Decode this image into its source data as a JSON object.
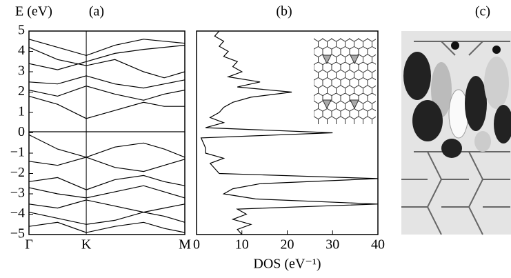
{
  "chart_data": [
    {
      "type": "line",
      "label": "(a)",
      "ylabel": "E (eV)",
      "color": "#000000",
      "x": [
        0,
        0.5,
        1,
        1.5,
        2,
        2.36,
        2.72
      ],
      "xlim": [
        0,
        2.72
      ],
      "xticks": [
        {
          "value": 0,
          "label": "Γ"
        },
        {
          "value": 1,
          "label": "K"
        },
        {
          "value": 2.72,
          "label": "M"
        }
      ],
      "ylim": [
        -5,
        5
      ],
      "yticks": [
        {
          "value": -5,
          "label": "−5"
        },
        {
          "value": -4,
          "label": "−4"
        },
        {
          "value": -3,
          "label": "−3"
        },
        {
          "value": -2,
          "label": "−2"
        },
        {
          "value": -1,
          "label": "−1"
        },
        0,
        1,
        2,
        3,
        4,
        5
      ],
      "series": [
        {
          "values": [
            4.6,
            4.2,
            3.8,
            4.3,
            4.6,
            4.5,
            4.4
          ]
        },
        {
          "values": [
            4.2,
            3.6,
            3.3,
            3.6,
            3.0,
            2.7,
            3.0
          ]
        },
        {
          "values": [
            3.4,
            3.1,
            3.5,
            3.9,
            4.1,
            4.2,
            4.3
          ]
        },
        {
          "values": [
            2.5,
            2.4,
            2.8,
            2.4,
            2.2,
            2.4,
            2.6
          ]
        },
        {
          "values": [
            2.1,
            1.8,
            2.3,
            1.9,
            1.6,
            1.9,
            2.1
          ]
        },
        {
          "values": [
            1.8,
            1.4,
            0.7,
            1.1,
            1.5,
            1.3,
            1.3
          ]
        },
        {
          "values": [
            0.05,
            0.05,
            0.05,
            0.05,
            0.05,
            0.05,
            0.05
          ]
        },
        {
          "values": [
            -0.1,
            -0.8,
            -1.2,
            -0.7,
            -0.5,
            -0.8,
            -1.2
          ]
        },
        {
          "values": [
            -1.4,
            -1.6,
            -1.2,
            -1.7,
            -1.9,
            -1.6,
            -1.3
          ]
        },
        {
          "values": [
            -2.4,
            -2.2,
            -2.8,
            -2.3,
            -2.1,
            -2.4,
            -2.6
          ]
        },
        {
          "values": [
            -2.7,
            -3.0,
            -3.2,
            -2.9,
            -2.6,
            -2.9,
            -3.2
          ]
        },
        {
          "values": [
            -3.5,
            -3.7,
            -3.3,
            -3.6,
            -3.9,
            -3.7,
            -3.5
          ]
        },
        {
          "values": [
            -3.9,
            -4.2,
            -4.5,
            -4.3,
            -3.9,
            -4.1,
            -4.4
          ]
        },
        {
          "values": [
            -4.6,
            -4.4,
            -4.9,
            -4.6,
            -4.4,
            -4.7,
            -4.9
          ]
        }
      ]
    },
    {
      "type": "line",
      "orientation": "horizontal",
      "label": "(b)",
      "xlabel": "DOS (eV⁻¹)",
      "color": "#000000",
      "y": [
        -5,
        -4.75,
        -4.5,
        -4.25,
        -4,
        -3.75,
        -3.5,
        -3.25,
        -3,
        -2.75,
        -2.5,
        -2.25,
        -2,
        -1.75,
        -1.5,
        -1.25,
        -1,
        -0.75,
        -0.5,
        -0.25,
        0,
        0.25,
        0.5,
        0.75,
        1,
        1.25,
        1.5,
        1.75,
        2,
        2.25,
        2.5,
        2.75,
        3,
        3.25,
        3.5,
        3.75,
        4,
        4.25,
        4.5,
        4.75,
        5
      ],
      "xlim": [
        0,
        40
      ],
      "xticks": [
        0,
        10,
        20,
        30,
        40
      ],
      "ylim": [
        -5,
        5
      ],
      "series": [
        {
          "values": [
            10,
            9,
            12,
            8,
            11,
            9,
            40,
            13,
            6,
            8,
            14,
            40,
            5,
            4,
            3,
            6,
            2,
            2,
            1.5,
            1,
            30,
            2,
            6,
            3,
            5,
            6,
            8,
            12,
            21,
            9,
            14,
            7,
            10,
            8,
            9,
            6,
            7,
            5,
            6,
            4,
            5
          ]
        }
      ]
    }
  ],
  "panel_c": {
    "label": "(c)"
  }
}
